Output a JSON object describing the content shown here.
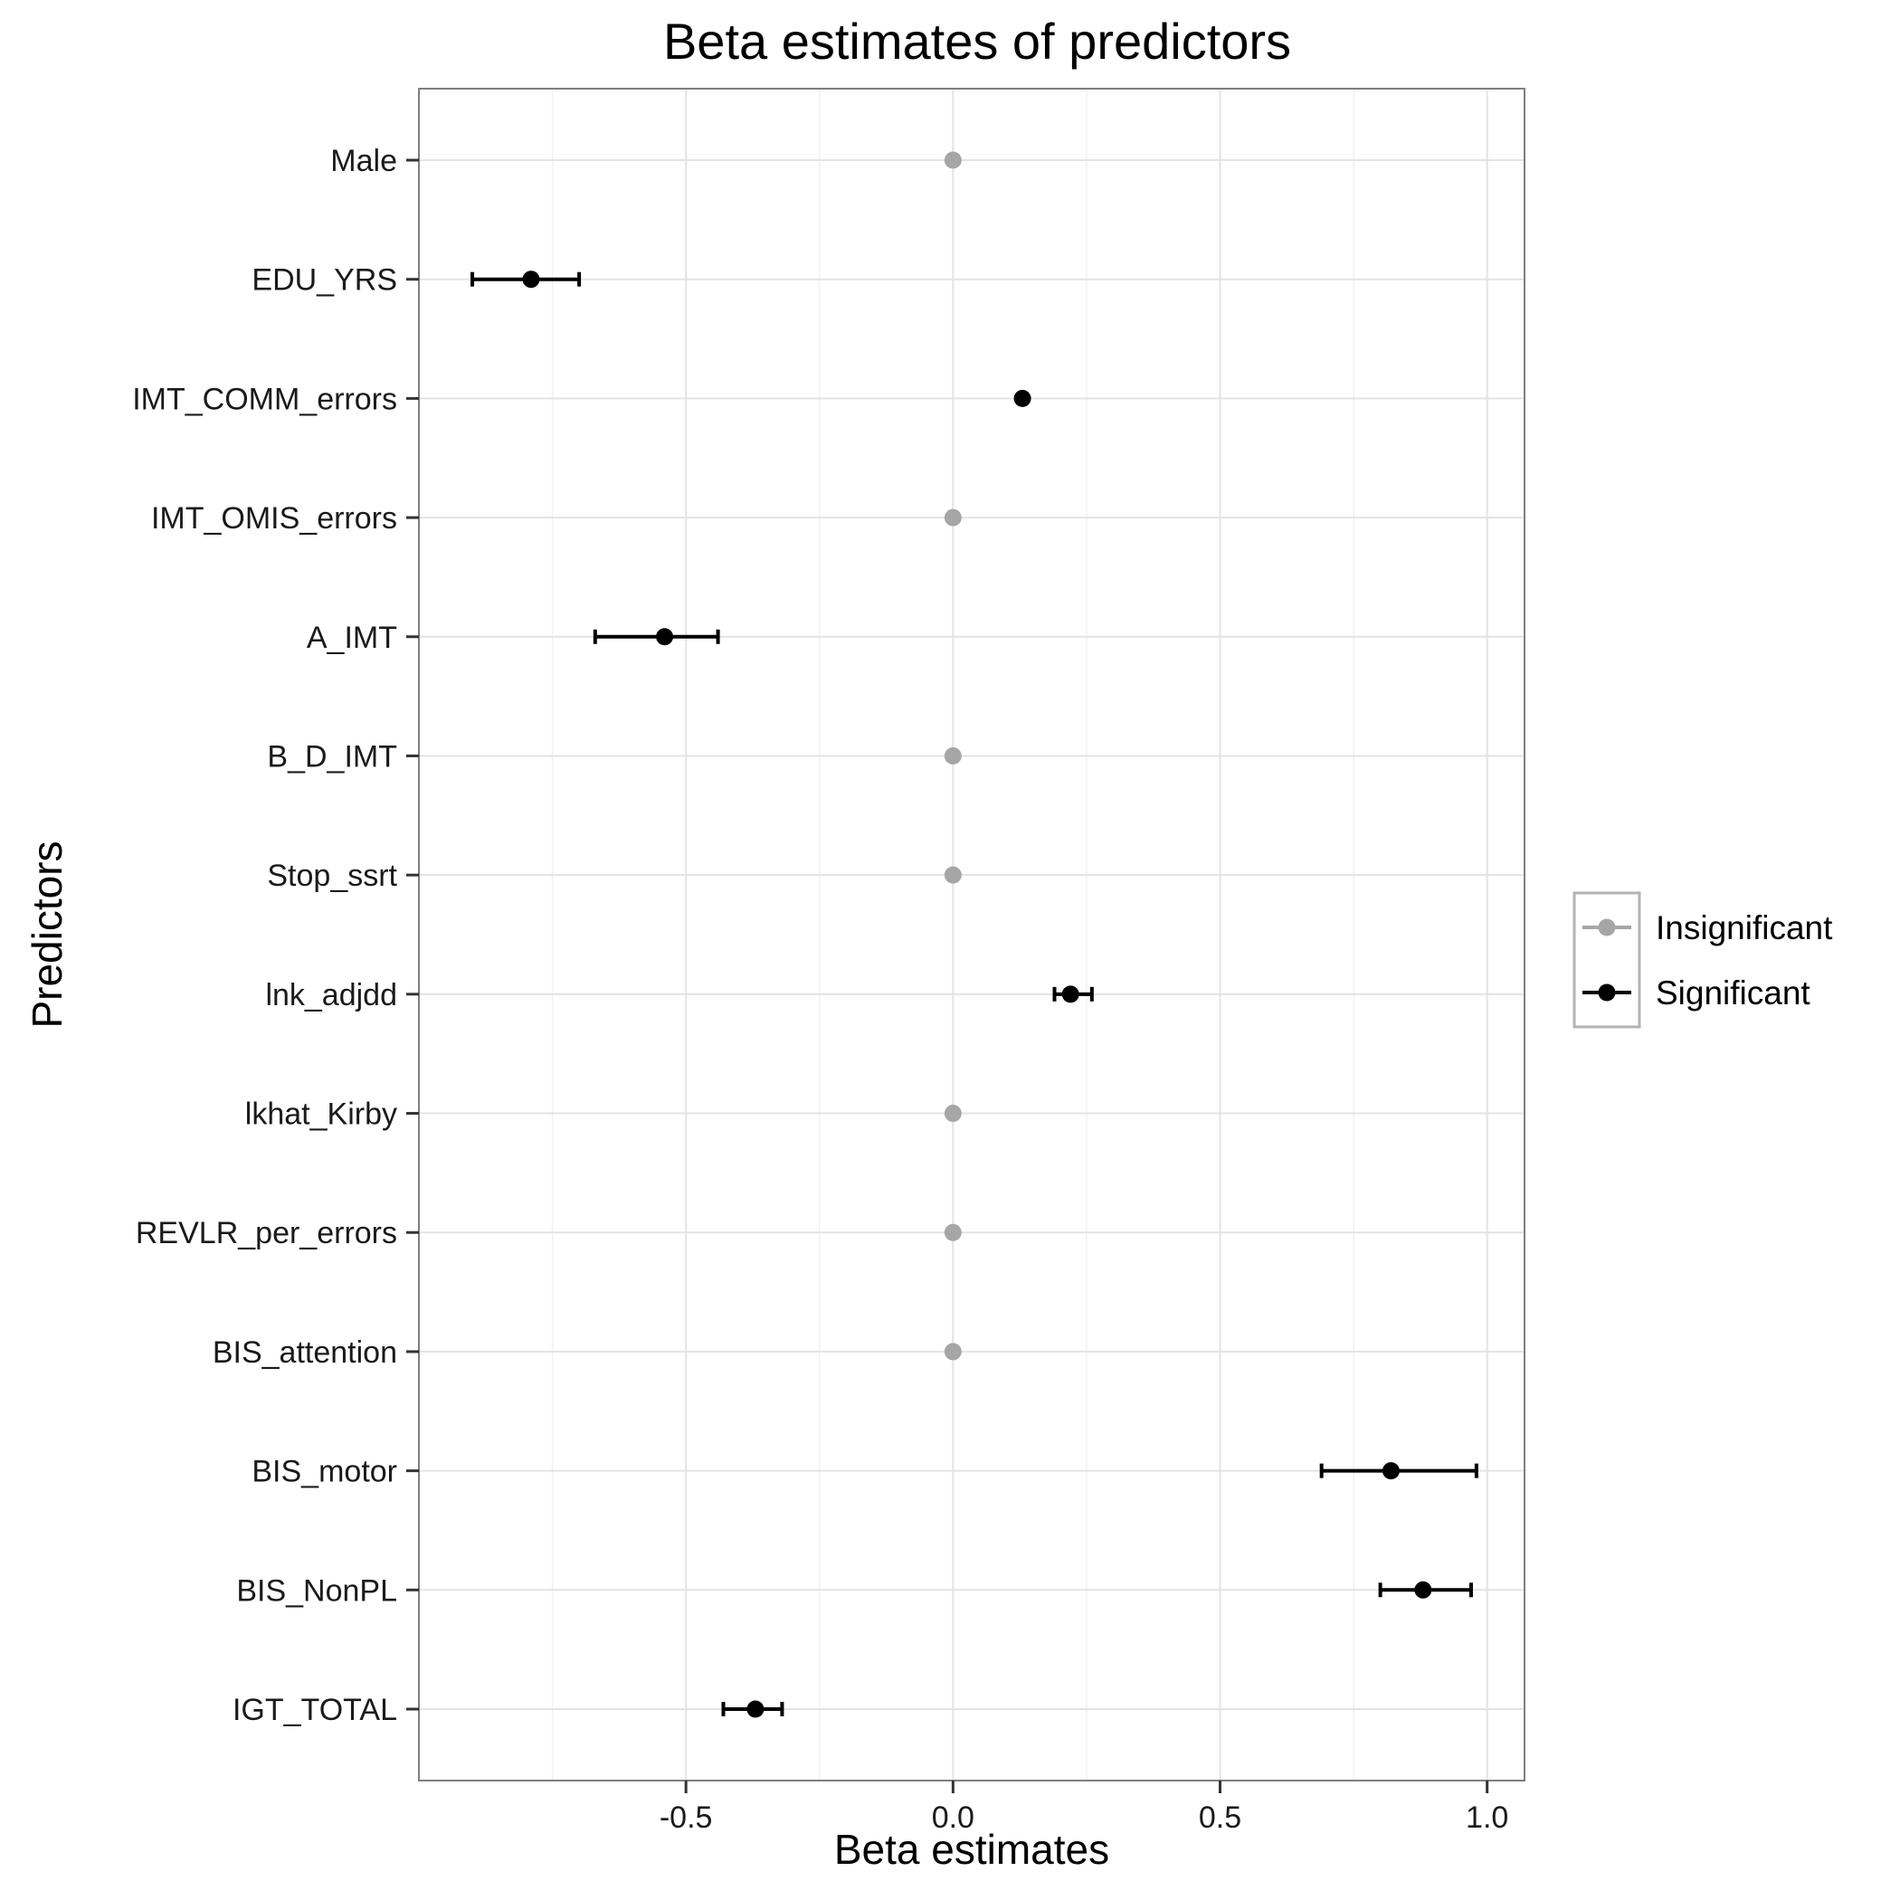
{
  "chart_data": {
    "type": "scatter",
    "title": "Beta estimates of predictors",
    "xlabel": "Beta estimates",
    "ylabel": "Predictors",
    "xlim": [
      -1.0,
      1.07
    ],
    "x_ticks": [
      -0.5,
      0.0,
      0.5,
      1.0
    ],
    "x_tick_labels": [
      "-0.5",
      "0.0",
      "0.5",
      "1.0"
    ],
    "grid": true,
    "legend_position": "right",
    "legend": [
      {
        "key": "Insignificant",
        "label": "Insignificant",
        "color": "#a6a6a6"
      },
      {
        "key": "Significant",
        "label": "Significant",
        "color": "#000000"
      }
    ],
    "points": [
      {
        "predictor": "Male",
        "estimate": 0.0,
        "lower": 0.0,
        "upper": 0.0,
        "group": "Insignificant"
      },
      {
        "predictor": "EDU_YRS",
        "estimate": -0.79,
        "lower": -0.9,
        "upper": -0.7,
        "group": "Significant"
      },
      {
        "predictor": "IMT_COMM_errors",
        "estimate": 0.13,
        "lower": 0.13,
        "upper": 0.13,
        "group": "Significant"
      },
      {
        "predictor": "IMT_OMIS_errors",
        "estimate": 0.0,
        "lower": 0.0,
        "upper": 0.0,
        "group": "Insignificant"
      },
      {
        "predictor": "A_IMT",
        "estimate": -0.54,
        "lower": -0.67,
        "upper": -0.44,
        "group": "Significant"
      },
      {
        "predictor": "B_D_IMT",
        "estimate": 0.0,
        "lower": 0.0,
        "upper": 0.0,
        "group": "Insignificant"
      },
      {
        "predictor": "Stop_ssrt",
        "estimate": 0.0,
        "lower": 0.0,
        "upper": 0.0,
        "group": "Insignificant"
      },
      {
        "predictor": "lnk_adjdd",
        "estimate": 0.22,
        "lower": 0.19,
        "upper": 0.26,
        "group": "Significant"
      },
      {
        "predictor": "lkhat_Kirby",
        "estimate": 0.0,
        "lower": 0.0,
        "upper": 0.0,
        "group": "Insignificant"
      },
      {
        "predictor": "REVLR_per_errors",
        "estimate": 0.0,
        "lower": 0.0,
        "upper": 0.0,
        "group": "Insignificant"
      },
      {
        "predictor": "BIS_attention",
        "estimate": 0.0,
        "lower": 0.0,
        "upper": 0.0,
        "group": "Insignificant"
      },
      {
        "predictor": "BIS_motor",
        "estimate": 0.82,
        "lower": 0.69,
        "upper": 0.98,
        "group": "Significant"
      },
      {
        "predictor": "BIS_NonPL",
        "estimate": 0.88,
        "lower": 0.8,
        "upper": 0.97,
        "group": "Significant"
      },
      {
        "predictor": "IGT_TOTAL",
        "estimate": -0.37,
        "lower": -0.43,
        "upper": -0.32,
        "group": "Significant"
      }
    ]
  }
}
